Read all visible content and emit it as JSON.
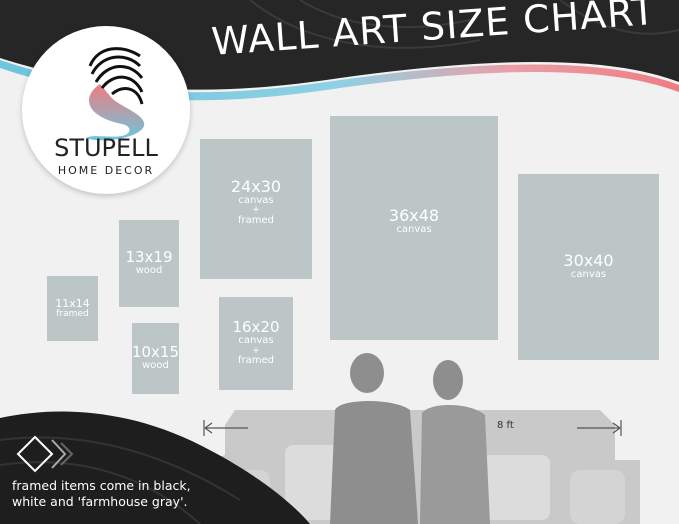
{
  "title": "WALL ART SIZE CHART",
  "logo": {
    "name": "STUPELL",
    "sub": "HOME DECOR"
  },
  "frames": [
    {
      "size": "11x14",
      "type": "framed"
    },
    {
      "size": "13x19",
      "type": "wood"
    },
    {
      "size": "10x15",
      "type": "wood"
    },
    {
      "size": "24x30",
      "type": "canvas",
      "plus": "+",
      "type2": "framed"
    },
    {
      "size": "16x20",
      "type": "canvas",
      "plus": "+",
      "type2": "framed"
    },
    {
      "size": "36x48",
      "type": "canvas"
    },
    {
      "size": "30x40",
      "type": "canvas"
    }
  ],
  "sofa_width": "8 ft",
  "note": {
    "line1": "framed items come in black,",
    "line2": "white and 'farmhouse gray'."
  },
  "colors": {
    "header": "#262626",
    "frame": "#bcc6c6",
    "accent_blue": "#6cc6dc",
    "accent_pink": "#ee7c82"
  }
}
